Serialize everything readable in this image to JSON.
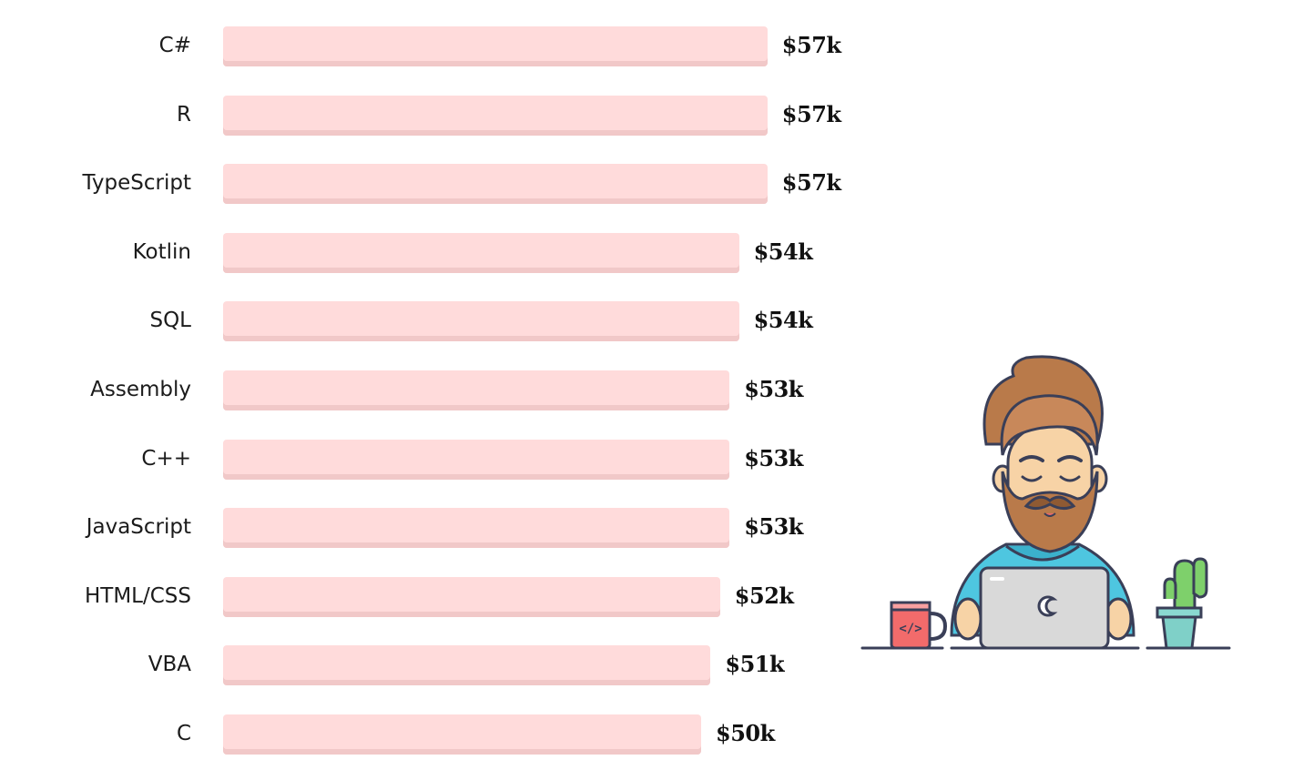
{
  "chart_data": {
    "type": "bar",
    "orientation": "horizontal",
    "categories": [
      "C#",
      "R",
      "TypeScript",
      "Kotlin",
      "SQL",
      "Assembly",
      "C++",
      "JavaScript",
      "HTML/CSS",
      "VBA",
      "C"
    ],
    "values": [
      57,
      57,
      57,
      54,
      54,
      53,
      53,
      53,
      52,
      51,
      50
    ],
    "value_labels": [
      "$57k",
      "$57k",
      "$57k",
      "$54k",
      "$54k",
      "$53k",
      "$53k",
      "$53k",
      "$52k",
      "$51k",
      "$50k"
    ],
    "title": "",
    "xlabel": "",
    "ylabel": "",
    "grid": false,
    "bar_color": "#ffdbdb",
    "bar_shadow_color": "#f1c8c8"
  },
  "illustration": {
    "subject": "bearded-developer-with-laptop",
    "mug_label": "</>",
    "colors": {
      "hair": "#b97a4a",
      "skin": "#f7d3a6",
      "shirt": "#4ec6e0",
      "laptop": "#d9d9d9",
      "mug": "#f26b6b",
      "cactus": "#7ed06b",
      "pot": "#7fd0c8",
      "outline": "#3a3f58"
    }
  }
}
